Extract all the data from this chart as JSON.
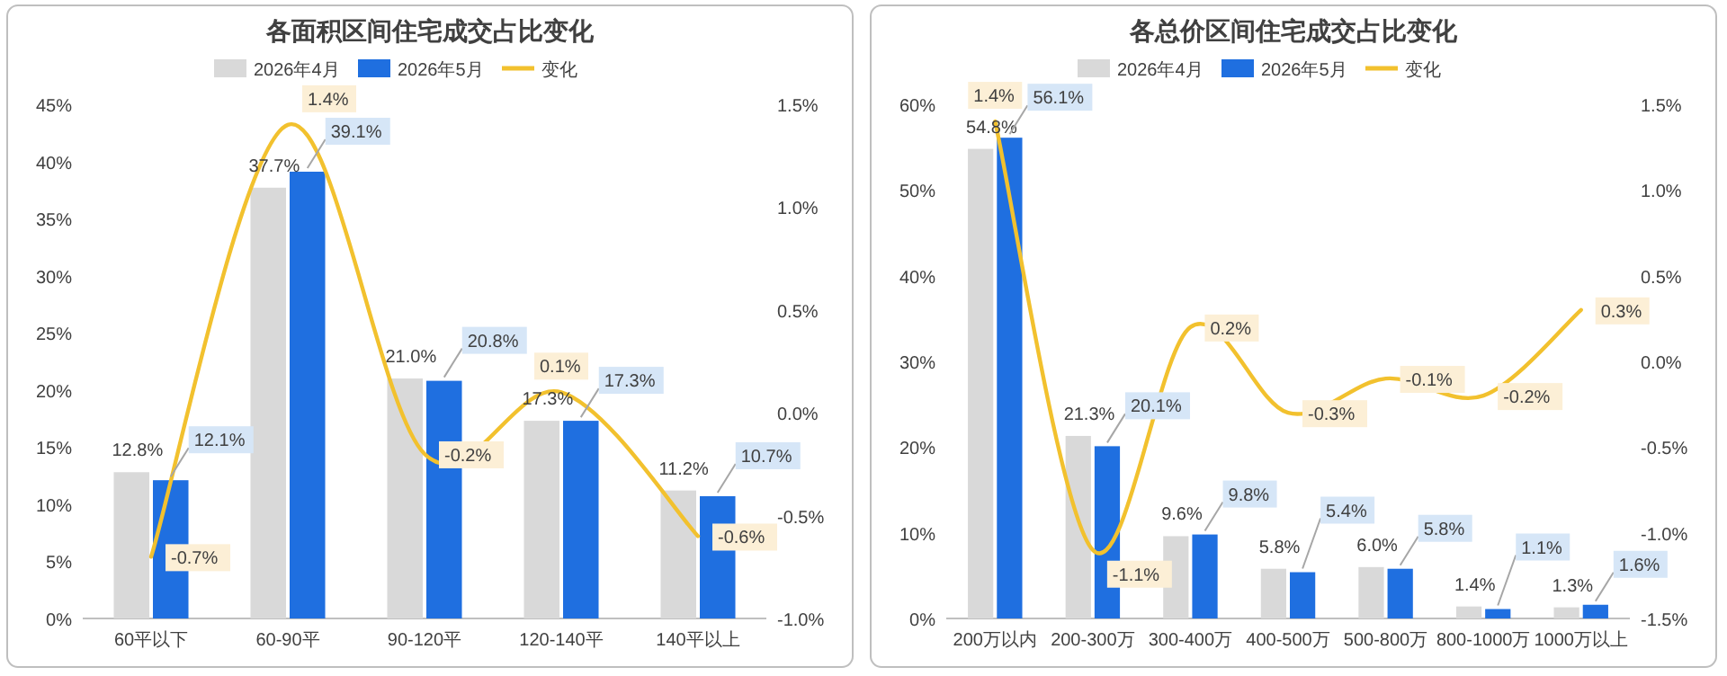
{
  "chart_data": [
    {
      "type": "bar",
      "title": "各面积区间住宅成交占比变化",
      "legend": "top",
      "categories": [
        "60平以下",
        "60-90平",
        "90-120平",
        "120-140平",
        "140平以上"
      ],
      "series": [
        {
          "name": "2026年4月",
          "color": "#d9d9d9",
          "values": [
            12.8,
            37.7,
            21.0,
            17.3,
            11.2
          ],
          "value_labels": [
            "12.8%",
            "37.7%",
            "21.0%",
            "17.3%",
            "11.2%"
          ]
        },
        {
          "name": "2026年5月",
          "color": "#1f6fe0",
          "values": [
            12.1,
            39.1,
            20.8,
            17.3,
            10.7
          ],
          "value_labels": [
            "12.1%",
            "39.1%",
            "20.8%",
            "17.3%",
            "10.7%"
          ]
        },
        {
          "name": "变化",
          "color": "#f2c12e",
          "type": "line",
          "axis": "y2",
          "values": [
            -0.7,
            1.4,
            -0.2,
            0.1,
            -0.6
          ],
          "value_labels": [
            "-0.7%",
            "1.4%",
            "-0.2%",
            "0.1%",
            "-0.6%"
          ]
        }
      ],
      "ylim": [
        0,
        45
      ],
      "yticks": [
        {
          "value": 0,
          "label": "0%"
        },
        {
          "value": 5,
          "label": "5%"
        },
        {
          "value": 10,
          "label": "10%"
        },
        {
          "value": 15,
          "label": "15%"
        },
        {
          "value": 20,
          "label": "20%"
        },
        {
          "value": 25,
          "label": "25%"
        },
        {
          "value": 30,
          "label": "30%"
        },
        {
          "value": 35,
          "label": "35%"
        },
        {
          "value": 40,
          "label": "40%"
        },
        {
          "value": 45,
          "label": "45%"
        }
      ],
      "y2lim": [
        -1.0,
        1.5
      ],
      "y2ticks": [
        {
          "value": -1.0,
          "label": "-1.0%"
        },
        {
          "value": -0.5,
          "label": "-0.5%"
        },
        {
          "value": 0,
          "label": "0.0%"
        },
        {
          "value": 0.5,
          "label": "0.5%"
        },
        {
          "value": 1.0,
          "label": "1.0%"
        },
        {
          "value": 1.5,
          "label": "1.5%"
        }
      ]
    },
    {
      "type": "bar",
      "title": "各总价区间住宅成交占比变化",
      "legend": "top",
      "categories": [
        "200万以内",
        "200-300万",
        "300-400万",
        "400-500万",
        "500-800万",
        "800-1000万",
        "1000万以上"
      ],
      "series": [
        {
          "name": "2026年4月",
          "color": "#d9d9d9",
          "values": [
            54.8,
            21.3,
            9.6,
            5.8,
            6.0,
            1.4,
            1.3
          ],
          "value_labels": [
            "54.8%",
            "21.3%",
            "9.6%",
            "5.8%",
            "6.0%",
            "1.4%",
            "1.3%"
          ]
        },
        {
          "name": "2026年5月",
          "color": "#1f6fe0",
          "values": [
            56.1,
            20.1,
            9.8,
            5.4,
            5.8,
            1.1,
            1.6
          ],
          "value_labels": [
            "56.1%",
            "20.1%",
            "9.8%",
            "5.4%",
            "5.8%",
            "1.1%",
            "1.6%"
          ]
        },
        {
          "name": "变化",
          "color": "#f2c12e",
          "type": "line",
          "axis": "y2",
          "values": [
            1.4,
            -1.1,
            0.2,
            -0.3,
            -0.1,
            -0.2,
            0.3
          ],
          "value_labels": [
            "1.4%",
            "-1.1%",
            "0.2%",
            "-0.3%",
            "-0.1%",
            "-0.2%",
            "0.3%"
          ]
        }
      ],
      "ylim": [
        0,
        60
      ],
      "yticks": [
        {
          "value": 0,
          "label": "0%"
        },
        {
          "value": 10,
          "label": "10%"
        },
        {
          "value": 20,
          "label": "20%"
        },
        {
          "value": 30,
          "label": "30%"
        },
        {
          "value": 40,
          "label": "40%"
        },
        {
          "value": 50,
          "label": "50%"
        },
        {
          "value": 60,
          "label": "60%"
        }
      ],
      "y2lim": [
        -1.5,
        1.5
      ],
      "y2ticks": [
        {
          "value": -1.5,
          "label": "-1.5%"
        },
        {
          "value": -1.0,
          "label": "-1.0%"
        },
        {
          "value": -0.5,
          "label": "-0.5%"
        },
        {
          "value": 0,
          "label": "0.0%"
        },
        {
          "value": 0.5,
          "label": "0.5%"
        },
        {
          "value": 1.0,
          "label": "1.0%"
        },
        {
          "value": 1.5,
          "label": "1.5%"
        }
      ]
    }
  ]
}
